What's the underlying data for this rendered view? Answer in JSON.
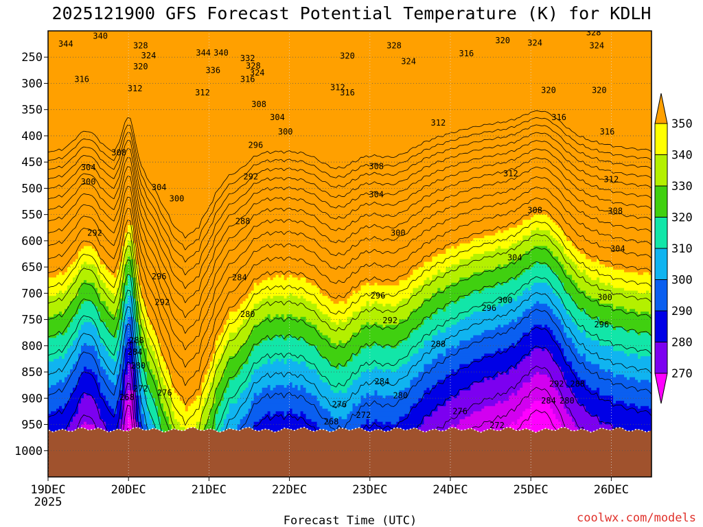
{
  "chart_data": {
    "type": "heatmap",
    "title": "2025121900 GFS Forecast Potential Temperature (K) for KDLH",
    "xlabel": "Forecast Time (UTC)",
    "ylabel": "",
    "credit": "coolwx.com/models",
    "x_ticks": [
      "19DEC",
      "20DEC",
      "21DEC",
      "22DEC",
      "23DEC",
      "24DEC",
      "25DEC",
      "26DEC"
    ],
    "x_tick_year": "2025",
    "x_range_days": [
      0,
      7.5
    ],
    "y_ticks": [
      250,
      300,
      350,
      400,
      450,
      500,
      550,
      600,
      650,
      700,
      750,
      800,
      850,
      900,
      950,
      1000
    ],
    "y_range_hpa": [
      200,
      1050
    ],
    "surface_pressure_hpa": 960,
    "colorbar": {
      "levels": [
        270,
        280,
        290,
        300,
        310,
        320,
        330,
        340,
        350
      ],
      "colors": [
        "#ff00ff",
        "#d200f0",
        "#7c00f0",
        "#0000e6",
        "#0a5ff0",
        "#10b4f0",
        "#12e6a8",
        "#40d010",
        "#b4f000",
        "#ffff00",
        "#ffa000"
      ]
    },
    "contour_interval": 4,
    "contour_labels": [
      {
        "v": 344,
        "d": 0.22,
        "p": 225
      },
      {
        "v": 340,
        "d": 0.65,
        "p": 210
      },
      {
        "v": 328,
        "d": 1.15,
        "p": 228
      },
      {
        "v": 324,
        "d": 1.25,
        "p": 247
      },
      {
        "v": 320,
        "d": 1.15,
        "p": 268
      },
      {
        "v": 316,
        "d": 0.42,
        "p": 292
      },
      {
        "v": 312,
        "d": 1.08,
        "p": 310
      },
      {
        "v": 344,
        "d": 1.93,
        "p": 242
      },
      {
        "v": 340,
        "d": 2.15,
        "p": 242
      },
      {
        "v": 336,
        "d": 2.05,
        "p": 275
      },
      {
        "v": 332,
        "d": 2.48,
        "p": 252
      },
      {
        "v": 328,
        "d": 2.55,
        "p": 267
      },
      {
        "v": 324,
        "d": 2.6,
        "p": 280
      },
      {
        "v": 316,
        "d": 2.48,
        "p": 292
      },
      {
        "v": 312,
        "d": 1.92,
        "p": 318
      },
      {
        "v": 308,
        "d": 2.62,
        "p": 340
      },
      {
        "v": 304,
        "d": 2.85,
        "p": 365
      },
      {
        "v": 300,
        "d": 2.95,
        "p": 392
      },
      {
        "v": 296,
        "d": 2.58,
        "p": 418
      },
      {
        "v": 292,
        "d": 2.52,
        "p": 478
      },
      {
        "v": 288,
        "d": 2.42,
        "p": 563
      },
      {
        "v": 284,
        "d": 2.38,
        "p": 670
      },
      {
        "v": 280,
        "d": 2.48,
        "p": 740
      },
      {
        "v": 308,
        "d": 0.88,
        "p": 432
      },
      {
        "v": 304,
        "d": 0.5,
        "p": 460
      },
      {
        "v": 300,
        "d": 0.5,
        "p": 488
      },
      {
        "v": 292,
        "d": 0.58,
        "p": 585
      },
      {
        "v": 304,
        "d": 1.38,
        "p": 498
      },
      {
        "v": 300,
        "d": 1.6,
        "p": 520
      },
      {
        "v": 296,
        "d": 1.38,
        "p": 668
      },
      {
        "v": 292,
        "d": 1.42,
        "p": 717
      },
      {
        "v": 288,
        "d": 1.1,
        "p": 790
      },
      {
        "v": 284,
        "d": 1.08,
        "p": 812
      },
      {
        "v": 280,
        "d": 1.12,
        "p": 838
      },
      {
        "v": 272,
        "d": 1.15,
        "p": 882
      },
      {
        "v": 276,
        "d": 1.45,
        "p": 890
      },
      {
        "v": 268,
        "d": 0.98,
        "p": 898
      },
      {
        "v": 320,
        "d": 3.72,
        "p": 248
      },
      {
        "v": 312,
        "d": 3.6,
        "p": 308
      },
      {
        "v": 316,
        "d": 3.72,
        "p": 318
      },
      {
        "v": 328,
        "d": 4.3,
        "p": 228
      },
      {
        "v": 324,
        "d": 4.48,
        "p": 258
      },
      {
        "v": 316,
        "d": 5.2,
        "p": 243
      },
      {
        "v": 312,
        "d": 4.85,
        "p": 375
      },
      {
        "v": 308,
        "d": 4.08,
        "p": 458
      },
      {
        "v": 304,
        "d": 4.08,
        "p": 512
      },
      {
        "v": 300,
        "d": 4.35,
        "p": 585
      },
      {
        "v": 296,
        "d": 4.1,
        "p": 705
      },
      {
        "v": 292,
        "d": 4.25,
        "p": 752
      },
      {
        "v": 288,
        "d": 4.85,
        "p": 797
      },
      {
        "v": 284,
        "d": 4.15,
        "p": 868
      },
      {
        "v": 280,
        "d": 4.38,
        "p": 895
      },
      {
        "v": 276,
        "d": 3.62,
        "p": 912
      },
      {
        "v": 272,
        "d": 3.92,
        "p": 932
      },
      {
        "v": 268,
        "d": 3.52,
        "p": 945
      },
      {
        "v": 320,
        "d": 5.65,
        "p": 218
      },
      {
        "v": 324,
        "d": 6.05,
        "p": 223
      },
      {
        "v": 316,
        "d": 6.35,
        "p": 365
      },
      {
        "v": 312,
        "d": 5.75,
        "p": 472
      },
      {
        "v": 308,
        "d": 6.05,
        "p": 542
      },
      {
        "v": 304,
        "d": 5.8,
        "p": 632
      },
      {
        "v": 300,
        "d": 5.68,
        "p": 713
      },
      {
        "v": 296,
        "d": 5.48,
        "p": 728
      },
      {
        "v": 292,
        "d": 6.32,
        "p": 873
      },
      {
        "v": 288,
        "d": 6.58,
        "p": 873
      },
      {
        "v": 284,
        "d": 6.22,
        "p": 905
      },
      {
        "v": 280,
        "d": 6.45,
        "p": 905
      },
      {
        "v": 276,
        "d": 5.12,
        "p": 925
      },
      {
        "v": 272,
        "d": 5.58,
        "p": 952
      },
      {
        "v": 320,
        "d": 6.22,
        "p": 313
      },
      {
        "v": 320,
        "d": 6.85,
        "p": 313
      },
      {
        "v": 316,
        "d": 6.95,
        "p": 392
      },
      {
        "v": 312,
        "d": 7.0,
        "p": 483
      },
      {
        "v": 308,
        "d": 7.05,
        "p": 543
      },
      {
        "v": 304,
        "d": 7.08,
        "p": 615
      },
      {
        "v": 300,
        "d": 6.92,
        "p": 708
      },
      {
        "v": 296,
        "d": 6.88,
        "p": 760
      },
      {
        "v": 328,
        "d": 6.78,
        "p": 203
      },
      {
        "v": 324,
        "d": 6.82,
        "p": 228
      }
    ]
  }
}
